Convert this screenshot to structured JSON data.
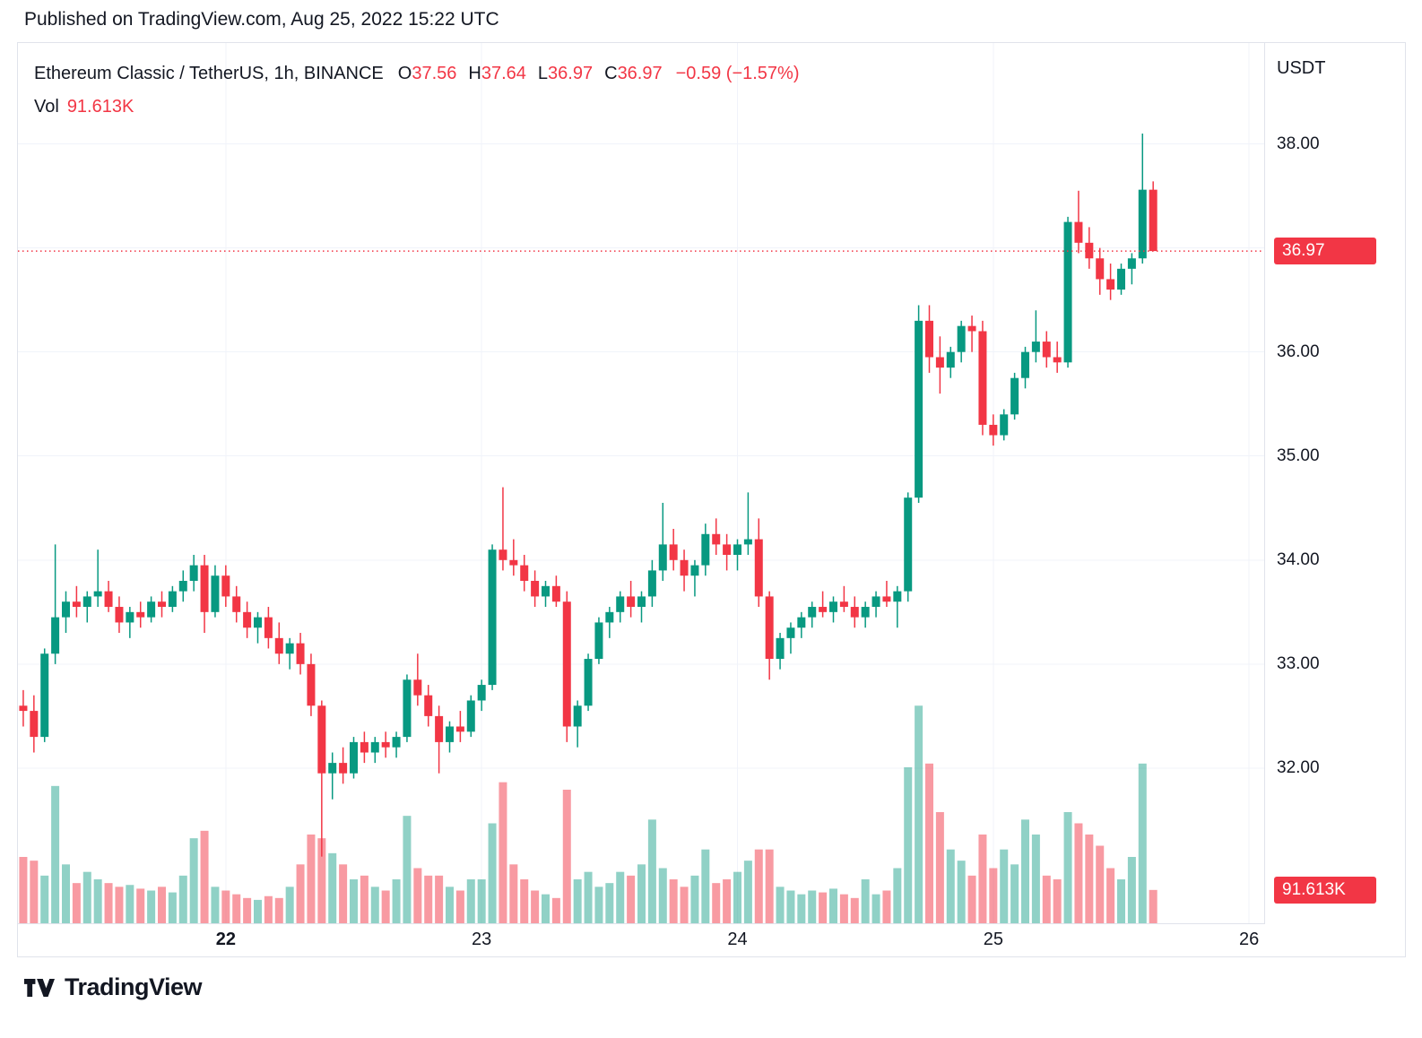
{
  "page": {
    "published_line": "Published on TradingView.com, Aug 25, 2022 15:22 UTC"
  },
  "legend": {
    "symbol": "Ethereum Classic / TetherUS, 1h, BINANCE",
    "items": [
      {
        "k": "O",
        "v": "37.56"
      },
      {
        "k": "H",
        "v": "37.64"
      },
      {
        "k": "L",
        "v": "36.97"
      },
      {
        "k": "C",
        "v": "36.97"
      }
    ],
    "change": "−0.59 (−1.57%)",
    "vol_label": "Vol",
    "vol_value": "91.613K"
  },
  "axes": {
    "currency": "USDT",
    "last_price": "36.97",
    "last_volume": "91.613K"
  },
  "footer": {
    "brand": "TradingView"
  },
  "colors": {
    "up": "#089981",
    "down": "#f23645",
    "vol_up": "rgba(8,153,129,0.45)",
    "vol_down": "rgba(242,54,69,0.5)",
    "grid": "#f0f3fa",
    "axis_border": "#e0e3eb",
    "accent_red": "#f23645",
    "text": "#131722"
  },
  "chart_data": {
    "type": "candlestick+volume",
    "title": "Ethereum Classic / TetherUS, 1h, BINANCE",
    "interval": "1h",
    "exchange": "BINANCE",
    "quote_unit": "USDT",
    "header_ohlc": {
      "open": 37.56,
      "high": 37.64,
      "low": 36.97,
      "close": 36.97,
      "change": -0.59,
      "change_pct": -1.57,
      "volume_k": 91.613
    },
    "ylim": [
      30.5,
      38.97
    ],
    "vol_max_k": 600,
    "x_slots": 117,
    "grid_on": true,
    "grid_prices": [
      38,
      37,
      36,
      35,
      34,
      33,
      32
    ],
    "price_ticks": [
      {
        "label": "38.00",
        "value": 38
      },
      {
        "label": "36.00",
        "value": 36
      },
      {
        "label": "35.00",
        "value": 35
      },
      {
        "label": "34.00",
        "value": 34
      },
      {
        "label": "33.00",
        "value": 33
      },
      {
        "label": "32.00",
        "value": 32
      }
    ],
    "time_ticks": [
      {
        "label": "22",
        "index": 19,
        "bold": true
      },
      {
        "label": "23",
        "index": 43,
        "bold": false
      },
      {
        "label": "24",
        "index": 67,
        "bold": false
      },
      {
        "label": "25",
        "index": 91,
        "bold": false
      },
      {
        "label": "26",
        "index": 115,
        "bold": false
      }
    ],
    "candles_format": [
      "open",
      "high",
      "low",
      "close",
      "volume_k"
    ],
    "candles": [
      [
        32.6,
        32.75,
        32.4,
        32.55,
        180
      ],
      [
        32.55,
        32.7,
        32.15,
        32.3,
        170
      ],
      [
        32.3,
        33.15,
        32.25,
        33.1,
        130
      ],
      [
        33.1,
        34.15,
        33.0,
        33.45,
        370
      ],
      [
        33.45,
        33.7,
        33.3,
        33.6,
        160
      ],
      [
        33.6,
        33.75,
        33.45,
        33.55,
        110
      ],
      [
        33.55,
        33.7,
        33.4,
        33.65,
        140
      ],
      [
        33.65,
        34.1,
        33.55,
        33.7,
        120
      ],
      [
        33.7,
        33.8,
        33.5,
        33.55,
        110
      ],
      [
        33.55,
        33.65,
        33.3,
        33.4,
        100
      ],
      [
        33.4,
        33.55,
        33.25,
        33.5,
        105
      ],
      [
        33.5,
        33.6,
        33.35,
        33.45,
        95
      ],
      [
        33.45,
        33.65,
        33.4,
        33.6,
        90
      ],
      [
        33.6,
        33.7,
        33.45,
        33.55,
        100
      ],
      [
        33.55,
        33.75,
        33.5,
        33.7,
        85
      ],
      [
        33.7,
        33.9,
        33.6,
        33.8,
        130
      ],
      [
        33.8,
        34.05,
        33.7,
        33.95,
        230
      ],
      [
        33.95,
        34.05,
        33.3,
        33.5,
        250
      ],
      [
        33.5,
        33.95,
        33.45,
        33.85,
        100
      ],
      [
        33.85,
        33.95,
        33.55,
        33.65,
        90
      ],
      [
        33.65,
        33.75,
        33.4,
        33.5,
        80
      ],
      [
        33.5,
        33.6,
        33.25,
        33.35,
        70
      ],
      [
        33.35,
        33.5,
        33.2,
        33.45,
        65
      ],
      [
        33.45,
        33.55,
        33.15,
        33.25,
        75
      ],
      [
        33.25,
        33.4,
        33.0,
        33.1,
        70
      ],
      [
        33.1,
        33.25,
        32.95,
        33.2,
        100
      ],
      [
        33.2,
        33.3,
        32.9,
        33.0,
        160
      ],
      [
        33.0,
        33.1,
        32.5,
        32.6,
        240
      ],
      [
        32.6,
        32.65,
        31.15,
        31.95,
        230
      ],
      [
        31.95,
        32.15,
        31.7,
        32.05,
        190
      ],
      [
        32.05,
        32.2,
        31.85,
        31.95,
        160
      ],
      [
        31.95,
        32.3,
        31.9,
        32.25,
        120
      ],
      [
        32.25,
        32.35,
        32.05,
        32.15,
        130
      ],
      [
        32.15,
        32.3,
        32.05,
        32.25,
        100
      ],
      [
        32.25,
        32.35,
        32.1,
        32.2,
        90
      ],
      [
        32.2,
        32.35,
        32.1,
        32.3,
        120
      ],
      [
        32.3,
        32.9,
        32.25,
        32.85,
        290
      ],
      [
        32.85,
        33.1,
        32.6,
        32.7,
        150
      ],
      [
        32.7,
        32.8,
        32.4,
        32.5,
        130
      ],
      [
        32.5,
        32.6,
        31.95,
        32.25,
        130
      ],
      [
        32.25,
        32.45,
        32.15,
        32.4,
        100
      ],
      [
        32.4,
        32.55,
        32.25,
        32.35,
        90
      ],
      [
        32.35,
        32.7,
        32.3,
        32.65,
        120
      ],
      [
        32.65,
        32.85,
        32.55,
        32.8,
        120
      ],
      [
        32.8,
        34.15,
        32.75,
        34.1,
        270
      ],
      [
        34.1,
        34.7,
        33.9,
        34.0,
        380
      ],
      [
        34.0,
        34.2,
        33.85,
        33.95,
        160
      ],
      [
        33.95,
        34.05,
        33.7,
        33.8,
        120
      ],
      [
        33.8,
        33.9,
        33.55,
        33.65,
        90
      ],
      [
        33.65,
        33.8,
        33.55,
        33.75,
        80
      ],
      [
        33.75,
        33.85,
        33.55,
        33.6,
        70
      ],
      [
        33.6,
        33.7,
        32.25,
        32.4,
        360
      ],
      [
        32.4,
        32.65,
        32.2,
        32.6,
        120
      ],
      [
        32.6,
        33.1,
        32.55,
        33.05,
        140
      ],
      [
        33.05,
        33.45,
        33.0,
        33.4,
        100
      ],
      [
        33.4,
        33.55,
        33.25,
        33.5,
        110
      ],
      [
        33.5,
        33.7,
        33.4,
        33.65,
        140
      ],
      [
        33.65,
        33.8,
        33.45,
        33.55,
        130
      ],
      [
        33.55,
        33.7,
        33.4,
        33.65,
        160
      ],
      [
        33.65,
        34.0,
        33.55,
        33.9,
        280
      ],
      [
        33.9,
        34.55,
        33.8,
        34.15,
        150
      ],
      [
        34.15,
        34.3,
        33.9,
        34.0,
        120
      ],
      [
        34.0,
        34.1,
        33.7,
        33.85,
        100
      ],
      [
        33.85,
        34.0,
        33.65,
        33.95,
        130
      ],
      [
        33.95,
        34.35,
        33.85,
        34.25,
        200
      ],
      [
        34.25,
        34.4,
        34.05,
        34.15,
        110
      ],
      [
        34.15,
        34.25,
        33.9,
        34.05,
        120
      ],
      [
        34.05,
        34.2,
        33.9,
        34.15,
        140
      ],
      [
        34.15,
        34.65,
        34.05,
        34.2,
        170
      ],
      [
        34.2,
        34.4,
        33.55,
        33.65,
        200
      ],
      [
        33.65,
        33.7,
        32.85,
        33.05,
        200
      ],
      [
        33.05,
        33.3,
        32.95,
        33.25,
        100
      ],
      [
        33.25,
        33.4,
        33.1,
        33.35,
        90
      ],
      [
        33.35,
        33.5,
        33.25,
        33.45,
        80
      ],
      [
        33.45,
        33.6,
        33.35,
        33.55,
        90
      ],
      [
        33.55,
        33.7,
        33.45,
        33.5,
        85
      ],
      [
        33.5,
        33.65,
        33.4,
        33.6,
        95
      ],
      [
        33.6,
        33.75,
        33.5,
        33.55,
        80
      ],
      [
        33.55,
        33.65,
        33.35,
        33.45,
        70
      ],
      [
        33.45,
        33.6,
        33.35,
        33.55,
        120
      ],
      [
        33.55,
        33.7,
        33.45,
        33.65,
        80
      ],
      [
        33.65,
        33.8,
        33.55,
        33.6,
        90
      ],
      [
        33.6,
        33.75,
        33.35,
        33.7,
        150
      ],
      [
        33.7,
        34.65,
        33.6,
        34.6,
        420
      ],
      [
        34.6,
        36.45,
        34.55,
        36.3,
        585
      ],
      [
        36.3,
        36.45,
        35.8,
        35.95,
        430
      ],
      [
        35.95,
        36.15,
        35.6,
        35.85,
        300
      ],
      [
        35.85,
        36.05,
        35.75,
        36.0,
        200
      ],
      [
        36.0,
        36.3,
        35.9,
        36.25,
        170
      ],
      [
        36.25,
        36.35,
        36.0,
        36.2,
        130
      ],
      [
        36.2,
        36.3,
        35.2,
        35.3,
        240
      ],
      [
        35.3,
        35.4,
        35.1,
        35.2,
        150
      ],
      [
        35.2,
        35.45,
        35.15,
        35.4,
        200
      ],
      [
        35.4,
        35.8,
        35.35,
        35.75,
        160
      ],
      [
        35.75,
        36.05,
        35.65,
        36.0,
        280
      ],
      [
        36.0,
        36.4,
        35.9,
        36.1,
        240
      ],
      [
        36.1,
        36.2,
        35.85,
        35.95,
        130
      ],
      [
        35.95,
        36.1,
        35.8,
        35.9,
        120
      ],
      [
        35.9,
        37.3,
        35.85,
        37.25,
        300
      ],
      [
        37.25,
        37.55,
        36.95,
        37.05,
        270
      ],
      [
        37.05,
        37.2,
        36.8,
        36.9,
        240
      ],
      [
        36.9,
        37.0,
        36.55,
        36.7,
        210
      ],
      [
        36.7,
        36.85,
        36.5,
        36.6,
        150
      ],
      [
        36.6,
        36.85,
        36.55,
        36.8,
        120
      ],
      [
        36.8,
        36.95,
        36.65,
        36.9,
        180
      ],
      [
        36.9,
        38.1,
        36.85,
        37.56,
        430
      ],
      [
        37.56,
        37.64,
        36.97,
        36.97,
        91.613
      ]
    ]
  }
}
